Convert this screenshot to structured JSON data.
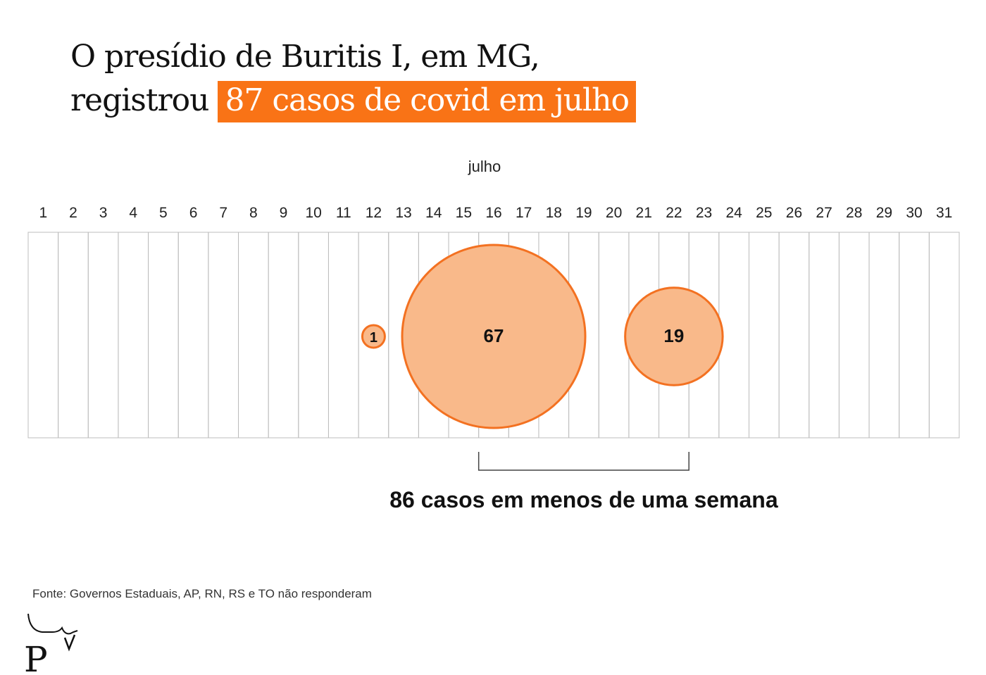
{
  "title": {
    "line1": "O presídio de Buritis I, em MG,",
    "line2_prefix": "registrou",
    "line2_highlight": "87 casos de covid em julho"
  },
  "chart_data": {
    "type": "bubble",
    "month_label": "julho",
    "days": [
      1,
      2,
      3,
      4,
      5,
      6,
      7,
      8,
      9,
      10,
      11,
      12,
      13,
      14,
      15,
      16,
      17,
      18,
      19,
      20,
      21,
      22,
      23,
      24,
      25,
      26,
      27,
      28,
      29,
      30,
      31
    ],
    "points": [
      {
        "day": 12,
        "cases": 1
      },
      {
        "day": 16,
        "cases": 67
      },
      {
        "day": 22,
        "cases": 19
      }
    ],
    "bracket": {
      "from_day": 16,
      "to_day": 22,
      "label": "86 casos em menos de uma semana"
    }
  },
  "colors": {
    "accent": "#f97316",
    "bubble_fill": "#f9b98a",
    "bubble_stroke": "#f37121",
    "grid": "#bdbdbd"
  },
  "source": "Fonte: Governos Estaduais, AP, RN, RS e TO não responderam",
  "logo": {
    "icon": "publisher-logo-icon"
  }
}
